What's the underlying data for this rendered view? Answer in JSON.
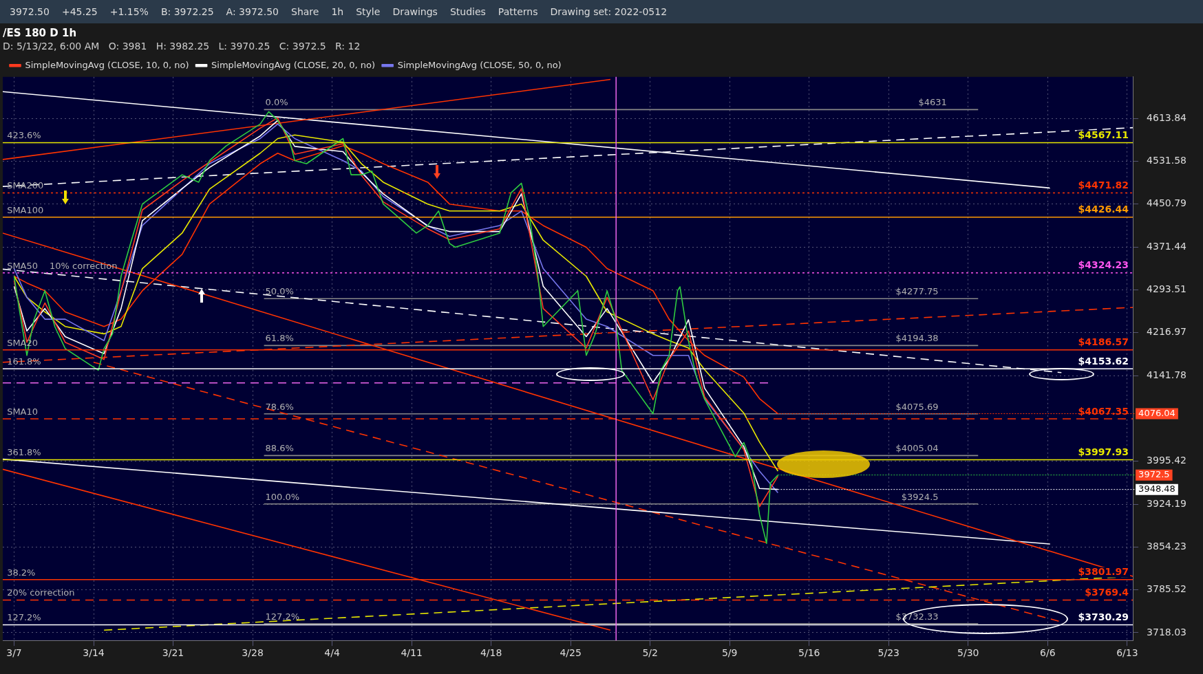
{
  "chart_data": {
    "type": "line",
    "title": "/ES 180 D 1h",
    "subtitle": "D: 5/13/22, 6:00 AM   O: 3981   H: 3982.25   L: 3970.25   C: 3972.5   R: 12",
    "legend": "top left",
    "grid": true,
    "log": true,
    "xlim": [
      "--03-06T00:00",
      "--06-13T12:00"
    ],
    "xticks": [
      {
        "value": "--03-07",
        "label": "3/7"
      },
      {
        "value": "--03-14",
        "label": "3/14"
      },
      {
        "value": "--03-21",
        "label": "3/21"
      },
      {
        "value": "--03-28",
        "label": "3/28"
      },
      {
        "value": "--04-04",
        "label": "4/4"
      },
      {
        "value": "--04-11",
        "label": "4/11"
      },
      {
        "value": "--04-18",
        "label": "4/18"
      },
      {
        "value": "--04-25",
        "label": "4/25"
      },
      {
        "value": "--05-02",
        "label": "5/2"
      },
      {
        "value": "--05-09",
        "label": "5/9"
      },
      {
        "value": "--05-16",
        "label": "5/16"
      },
      {
        "value": "--05-23",
        "label": "5/23"
      },
      {
        "value": "--05-30",
        "label": "5/30"
      },
      {
        "value": "--06-06",
        "label": "6/6"
      },
      {
        "value": "--06-13",
        "label": "6/13"
      }
    ],
    "ylim": [
      3706,
      4695
    ],
    "yticks": [
      3718.03,
      3785.52,
      3854.23,
      3924.19,
      3995.42,
      4141.78,
      4216.97,
      4293.51,
      4371.44,
      4450.79,
      4531.58,
      4613.84
    ],
    "series": [
      {
        "color": "#2ecc40",
        "x": [
          "--03-07T00:00",
          "--03-07T12:00",
          "--03-08T03:00",
          "--03-08T18:00",
          "--03-09T17:00",
          "--03-10T14:00",
          "--03-11T12:00",
          "--03-14T10:00",
          "--03-14T22:00",
          "--03-15T16:00",
          "--03-16T10:00",
          "--03-17T08:00",
          "--03-18T07:00",
          "--03-21T19:00",
          "--03-23T06:00",
          "--03-24T05:00",
          "--03-25T16:00",
          "--03-28T16:00",
          "--03-29T10:00",
          "--03-30T05:00",
          "--03-31T05:00",
          "--03-31T17:00",
          "--04-01T18:00",
          "--04-04T23:00",
          "--04-05T16:00",
          "--04-06T14:00",
          "--04-07T12:00",
          "--04-08T12:00",
          "--04-11T10:00",
          "--04-12T10:00",
          "--04-13T09:00",
          "--04-14T08:00",
          "--04-14T20:00",
          "--04-18T18:00",
          "--04-19T18:00",
          "--04-20T16:00",
          "--04-21T10:00",
          "--04-22T03:00",
          "--04-22T14:00",
          "--04-25T15:00",
          "--04-26T09:00",
          "--04-27T04:00",
          "--04-28T05:00",
          "--04-28T23:00",
          "--04-29T12:00",
          "--05-02T06:00",
          "--05-02T23:00",
          "--05-03T16:00",
          "--05-04T10:00",
          "--05-04T15:00",
          "--05-05T09:00",
          "--05-06T02:00",
          "--05-06T19:00",
          "--05-09T12:00",
          "--05-10T06:00",
          "--05-10T22:00",
          "--05-11T15:00",
          "--05-12T06:00",
          "--05-12T14:00",
          "--05-13T06:00"
        ],
        "values": [
          4318,
          4253,
          4177,
          4240,
          4292,
          4228,
          4189,
          4151,
          4189,
          4215,
          4318,
          4384,
          4451,
          4506,
          4492,
          4533,
          4561,
          4603,
          4627,
          4610,
          4575,
          4533,
          4527,
          4575,
          4506,
          4506,
          4513,
          4451,
          4397,
          4411,
          4438,
          4378,
          4371,
          4397,
          4472,
          4490,
          4422,
          4318,
          4228,
          4292,
          4177,
          4215,
          4292,
          4240,
          4151,
          4076,
          4151,
          4177,
          4292,
          4299,
          4202,
          4139,
          4101,
          4003,
          4027,
          3994,
          3907,
          3860,
          3959,
          3972.5
        ]
      },
      {
        "name": "SimpleMovingAvg (CLOSE, 10, 0, no)",
        "color": "#ff3b1f",
        "x": [
          "--03-07T00:00",
          "--03-08T03:00",
          "--03-09T17:00",
          "--03-11T12:00",
          "--03-14T22:00",
          "--03-16T10:00",
          "--03-18T07:00",
          "--03-21T19:00",
          "--03-24T05:00",
          "--03-28T16:00",
          "--03-30T05:00",
          "--03-31T17:00",
          "--04-04T23:00",
          "--04-06T14:00",
          "--04-08T12:00",
          "--04-12T10:00",
          "--04-14T08:00",
          "--04-18T18:00",
          "--04-20T16:00",
          "--04-22T14:00",
          "--04-26T09:00",
          "--04-28T05:00",
          "--05-02T06:00",
          "--05-03T16:00",
          "--05-05T09:00",
          "--05-06T19:00",
          "--05-10T06:00",
          "--05-11T15:00",
          "--05-13T06:00"
        ],
        "values": [
          4310,
          4200,
          4270,
          4200,
          4170,
          4290,
          4440,
          4495,
          4530,
          4595,
          4615,
          4545,
          4565,
          4505,
          4455,
          4405,
          4385,
          4405,
          4480,
          4260,
          4190,
          4280,
          4100,
          4170,
          4220,
          4105,
          4015,
          3920,
          3970.53
        ]
      },
      {
        "name": "SimpleMovingAvg (CLOSE, 20, 0, no)",
        "color": "#ffffff",
        "x": [
          "--03-07T00:00",
          "--03-08T03:00",
          "--03-09T17:00",
          "--03-11T12:00",
          "--03-14T22:00",
          "--03-16T10:00",
          "--03-18T07:00",
          "--03-21T19:00",
          "--03-24T05:00",
          "--03-28T16:00",
          "--03-30T05:00",
          "--03-31T17:00",
          "--04-04T23:00",
          "--04-06T14:00",
          "--04-08T12:00",
          "--04-12T10:00",
          "--04-14T08:00",
          "--04-18T18:00",
          "--04-20T16:00",
          "--04-22T14:00",
          "--04-26T09:00",
          "--04-28T05:00",
          "--05-02T06:00",
          "--05-03T16:00",
          "--05-05T09:00",
          "--05-06T19:00",
          "--05-10T06:00",
          "--05-11T15:00",
          "--05-13T06:00"
        ],
        "values": [
          4300,
          4220,
          4260,
          4210,
          4180,
          4260,
          4420,
          4480,
          4520,
          4580,
          4610,
          4560,
          4550,
          4510,
          4470,
          4410,
          4400,
          4400,
          4470,
          4300,
          4210,
          4260,
          4130,
          4170,
          4240,
          4120,
          4020,
          3950,
          3948.48
        ]
      },
      {
        "name": "SimpleMovingAvg (CLOSE, 50, 0, no)",
        "color": "#7777ee",
        "x": [
          "--03-07T00:00",
          "--03-08T03:00",
          "--03-09T17:00",
          "--03-11T12:00",
          "--03-14T22:00",
          "--03-16T10:00",
          "--03-18T07:00",
          "--03-21T19:00",
          "--03-24T05:00",
          "--03-28T16:00",
          "--03-30T05:00",
          "--03-31T17:00",
          "--04-04T23:00",
          "--04-06T14:00",
          "--04-08T12:00",
          "--04-12T10:00",
          "--04-14T08:00",
          "--04-18T18:00",
          "--04-20T16:00",
          "--04-22T14:00",
          "--04-26T09:00",
          "--04-28T05:00",
          "--05-02T06:00",
          "--05-03T16:00",
          "--05-05T09:00",
          "--05-06T19:00",
          "--05-10T06:00",
          "--05-11T15:00",
          "--05-13T06:00"
        ],
        "values": [
          4332,
          4280,
          4241,
          4241,
          4203,
          4292,
          4411,
          4479,
          4527,
          4575,
          4603,
          4575,
          4533,
          4513,
          4465,
          4411,
          4391,
          4411,
          4438,
          4332,
          4241,
          4228,
          4177,
          4177,
          4177,
          4102,
          4016,
          3979,
          3943
        ]
      },
      {
        "color": "#e8e800",
        "x": [
          "--03-07T00:00",
          "--03-08T03:00",
          "--03-09T17:00",
          "--03-11T12:00",
          "--03-14T22:00",
          "--03-16T10:00",
          "--03-18T07:00",
          "--03-21T19:00",
          "--03-24T05:00",
          "--03-28T16:00",
          "--03-30T05:00",
          "--03-31T17:00",
          "--04-04T23:00",
          "--04-06T14:00",
          "--04-08T12:00",
          "--04-12T10:00",
          "--04-14T08:00",
          "--04-18T18:00",
          "--04-20T16:00",
          "--04-22T14:00",
          "--04-26T09:00",
          "--04-28T05:00",
          "--05-02T06:00",
          "--05-03T16:00",
          "--05-05T09:00",
          "--05-06T19:00",
          "--05-10T06:00",
          "--05-11T15:00",
          "--05-13T06:00"
        ],
        "values": [
          4318,
          4280,
          4254,
          4228,
          4215,
          4228,
          4332,
          4397,
          4479,
          4547,
          4575,
          4582,
          4568,
          4527,
          4492,
          4451,
          4438,
          4438,
          4451,
          4384,
          4318,
          4254,
          4215,
          4203,
          4190,
          4152,
          4077,
          4028,
          3979
        ]
      },
      {
        "color": "#ff3300",
        "x": [
          "--03-07T00:00",
          "--03-08T03:00",
          "--03-09T17:00",
          "--03-11T12:00",
          "--03-14T22:00",
          "--03-16T10:00",
          "--03-18T07:00",
          "--03-21T19:00",
          "--03-24T05:00",
          "--03-28T16:00",
          "--03-30T05:00",
          "--03-31T17:00",
          "--04-04T23:00",
          "--04-06T14:00",
          "--04-08T12:00",
          "--04-12T10:00",
          "--04-14T08:00",
          "--04-18T18:00",
          "--04-20T16:00",
          "--04-22T14:00",
          "--04-26T09:00",
          "--04-28T05:00",
          "--05-02T06:00",
          "--05-03T16:00",
          "--05-05T09:00",
          "--05-06T19:00",
          "--05-10T06:00",
          "--05-11T15:00",
          "--05-13T06:00"
        ],
        "values": [
          4318,
          4306,
          4292,
          4254,
          4228,
          4241,
          4292,
          4358,
          4451,
          4527,
          4547,
          4533,
          4561,
          4547,
          4527,
          4492,
          4451,
          4438,
          4438,
          4411,
          4371,
          4332,
          4292,
          4241,
          4203,
          4177,
          4139,
          4102,
          4076.04
        ]
      },
      {
        "color": "#ff3300",
        "x": [
          "--03-06T00:00",
          "--04-28T12:00"
        ],
        "values": [
          4535,
          4690
        ]
      },
      {
        "color": "#ff3300",
        "x": [
          "--03-06T00:00",
          "--06-13T12:00"
        ],
        "values": [
          4397,
          3807
        ]
      },
      {
        "color": "#ff3300",
        "x": [
          "--03-06T00:00",
          "--04-28T12:00"
        ],
        "values": [
          3982,
          3722
        ]
      },
      {
        "color": "#ffffff",
        "line_style": "dashed",
        "x": [
          "--03-06T00:00",
          "--06-13T12:00"
        ],
        "values": [
          4484,
          4596
        ]
      },
      {
        "color": "#ffffff",
        "line_style": "dashed",
        "x": [
          "--03-06T00:00",
          "--06-07T05:00"
        ],
        "values": [
          4331,
          4147
        ]
      },
      {
        "color": "#ffffff",
        "x": [
          "--03-06T00:00",
          "--06-06T05:00"
        ],
        "values": [
          4666,
          4481
        ]
      },
      {
        "color": "#ffffff",
        "x": [
          "--03-06T00:00",
          "--06-06T05:00"
        ],
        "values": [
          3999,
          3859
        ]
      },
      {
        "color": "#e8e800",
        "line_style": "dashed",
        "x": [
          "--03-14T22:00",
          "--06-13T12:00"
        ],
        "values": [
          3722,
          3807
        ]
      },
      {
        "color": "#ff3300",
        "line_style": "dashed",
        "x": [
          "--03-14T00:00",
          "--06-07T05:00"
        ],
        "values": [
          4165,
          3735
        ]
      },
      {
        "color": "#ff3300",
        "line_style": "dashed",
        "x": [
          "--03-06T00:00",
          "--06-13T12:00"
        ],
        "values": [
          4165,
          4262
        ]
      },
      {
        "color": "#ee66ee",
        "line_style": "dashed",
        "x": [
          "--03-06T00:00",
          "--05-12T12:00"
        ],
        "values": [
          4129,
          4129
        ]
      },
      {
        "color": "#888888",
        "x": [
          "--03-29T00:00",
          "--05-30T21:00"
        ],
        "values": [
          4631,
          4631
        ]
      },
      {
        "color": "#888888",
        "x": [
          "--03-29T00:00",
          "--05-30T21:00"
        ],
        "values": [
          4277.75,
          4277.75
        ]
      },
      {
        "color": "#888888",
        "x": [
          "--03-29T00:00",
          "--05-30T21:00"
        ],
        "values": [
          4194.38,
          4194.38
        ]
      },
      {
        "color": "#888888",
        "x": [
          "--03-29T00:00",
          "--05-30T21:00"
        ],
        "values": [
          4075.69,
          4075.69
        ]
      },
      {
        "color": "#888888",
        "x": [
          "--03-29T00:00",
          "--05-30T21:00"
        ],
        "values": [
          4005.04,
          4005.04
        ]
      },
      {
        "color": "#888888",
        "x": [
          "--03-29T00:00",
          "--05-30T21:00"
        ],
        "values": [
          3924.5,
          3924.5
        ]
      },
      {
        "color": "#888888",
        "x": [
          "--03-29T00:00",
          "--05-30T21:00"
        ],
        "values": [
          3732.33,
          3732.33
        ]
      }
    ],
    "ref_lines": [
      {
        "axis": "y",
        "value": 4567.11,
        "label": "$4567.11",
        "color": "#e8e800",
        "line_style": "solid"
      },
      {
        "axis": "y",
        "value": 4471.82,
        "label": "$4471.82",
        "color": "#ff3300",
        "line_style": "dotted"
      },
      {
        "axis": "y",
        "value": 4426.44,
        "label": "$4426.44",
        "color": "#ff9900",
        "line_style": "solid"
      },
      {
        "axis": "y",
        "value": 4324.23,
        "label": "$4324.23",
        "color": "#ff55ee",
        "line_style": "dotted"
      },
      {
        "axis": "y",
        "value": 4186.57,
        "label": "$4186.57",
        "color": "#ff3300",
        "line_style": "solid"
      },
      {
        "axis": "y",
        "value": 4153.62,
        "label": "$4153.62",
        "color": "#ffffff",
        "line_style": "solid"
      },
      {
        "axis": "y",
        "value": 4067.35,
        "label": "$4067.35",
        "color": "#ff3300",
        "line_style": "dashed"
      },
      {
        "axis": "y",
        "value": 3997.93,
        "label": "$3997.93",
        "color": "#e8e800",
        "line_style": "solid"
      },
      {
        "axis": "y",
        "value": 3801.97,
        "label": "$3801.97",
        "color": "#ff3300",
        "line_style": "solid"
      },
      {
        "axis": "y",
        "value": 3769.4,
        "label": "$3769.4",
        "color": "#ff3300",
        "line_style": "dashed"
      },
      {
        "axis": "y",
        "value": 3730.29,
        "label": "$3730.29",
        "color": "#ffffff",
        "line_style": "solid"
      },
      {
        "axis": "x",
        "value": "--04-29T00:00",
        "color": "#ee66ee",
        "line_style": "solid"
      }
    ],
    "annotations": [
      "3972.50",
      "+45.25",
      "+1.15%",
      "B: 3972.25",
      "A: 3972.50",
      "Share",
      "1h",
      "Style",
      "Drawings",
      "Studies",
      "Patterns",
      "Drawing set: 2022-0512",
      {
        "text": "423.6%",
        "x": "--03-06T06:00",
        "y": 4567.11
      },
      {
        "text": "SMA200",
        "x": "--03-06T06:00",
        "y": 4471.82
      },
      {
        "text": "SMA100",
        "x": "--03-06T06:00",
        "y": 4426.44
      },
      {
        "text": "SMA50",
        "x": "--03-06T06:00",
        "y": 4324.23
      },
      {
        "text": "10% correction",
        "x": "--03-10T00:00",
        "y": 4324.23
      },
      {
        "text": "SMA20",
        "x": "--03-06T06:00",
        "y": 4186.57
      },
      {
        "text": "161.8%",
        "x": "--03-06T06:00",
        "y": 4153.62
      },
      {
        "text": "SMA10",
        "x": "--03-06T06:00",
        "y": 4067.35
      },
      {
        "text": "361.8%",
        "x": "--03-06T06:00",
        "y": 3997.93
      },
      {
        "text": "38.2%",
        "x": "--03-06T06:00",
        "y": 3801.97
      },
      {
        "text": "20% correction",
        "x": "--03-06T06:00",
        "y": 3769.4
      },
      {
        "text": "127.2%",
        "x": "--03-06T06:00",
        "y": 3730.29
      },
      {
        "text": "0.0%",
        "x": "--03-29T00:00",
        "y": 4631
      },
      {
        "text": "$4631",
        "x": "--05-25T12:00",
        "y": 4631
      },
      {
        "text": "50.0%",
        "x": "--03-29T00:00",
        "y": 4277.75
      },
      {
        "text": "$4277.75",
        "x": "--05-23T12:00",
        "y": 4277.75
      },
      {
        "text": "61.8%",
        "x": "--03-29T00:00",
        "y": 4194.38
      },
      {
        "text": "$4194.38",
        "x": "--05-23T12:00",
        "y": 4194.38
      },
      {
        "text": "78.6%",
        "x": "--03-29T00:00",
        "y": 4075.69
      },
      {
        "text": "$4075.69",
        "x": "--05-23T12:00",
        "y": 4075.69
      },
      {
        "text": "88.6%",
        "x": "--03-29T00:00",
        "y": 4005.04
      },
      {
        "text": "$4005.04",
        "x": "--05-23T12:00",
        "y": 4005.04
      },
      {
        "text": "100.0%",
        "x": "--03-29T00:00",
        "y": 3924.5
      },
      {
        "text": "$3924.5",
        "x": "--05-24T00:00",
        "y": 3924.5
      },
      {
        "text": "127.2%",
        "x": "--03-29T00:00",
        "y": 3732.33
      },
      {
        "text": "$3732.33",
        "x": "--05-23T12:00",
        "y": 3732.33
      },
      {
        "text": "4076.04",
        "x": "--05-13T06:00",
        "y": 4076.04
      },
      {
        "text": "3972.5",
        "x": "--05-13T06:00",
        "y": 3972.5
      },
      {
        "text": "3948.48",
        "x": "--05-13T06:00",
        "y": 3948.48
      }
    ]
  }
}
